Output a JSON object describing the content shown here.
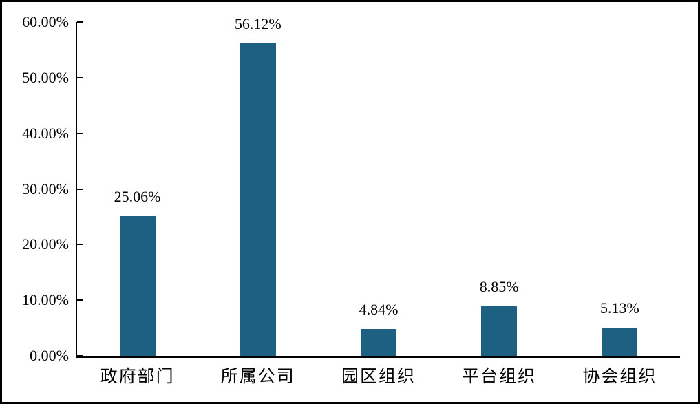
{
  "figure": {
    "background": "#ffffff",
    "border_color": "#000000",
    "axis_color": "#000000",
    "text_color": "#000000"
  },
  "chart_data": {
    "type": "bar",
    "title": "",
    "xlabel": "",
    "ylabel": "",
    "categories": [
      "政府部门",
      "所属公司",
      "园区组织",
      "平台组织",
      "协会组织"
    ],
    "values": [
      25.06,
      56.12,
      4.84,
      8.85,
      5.13
    ],
    "value_labels": [
      "25.06%",
      "56.12%",
      "4.84%",
      "8.85%",
      "5.13%"
    ],
    "y_tick_labels": [
      "0.00%",
      "10.00%",
      "20.00%",
      "30.00%",
      "40.00%",
      "50.00%",
      "60.00%"
    ],
    "y_tick_values": [
      0,
      10,
      20,
      30,
      40,
      50,
      60
    ],
    "ylim": [
      0,
      60
    ],
    "grid": false,
    "legend": null,
    "bar_color": "#1E6081"
  }
}
